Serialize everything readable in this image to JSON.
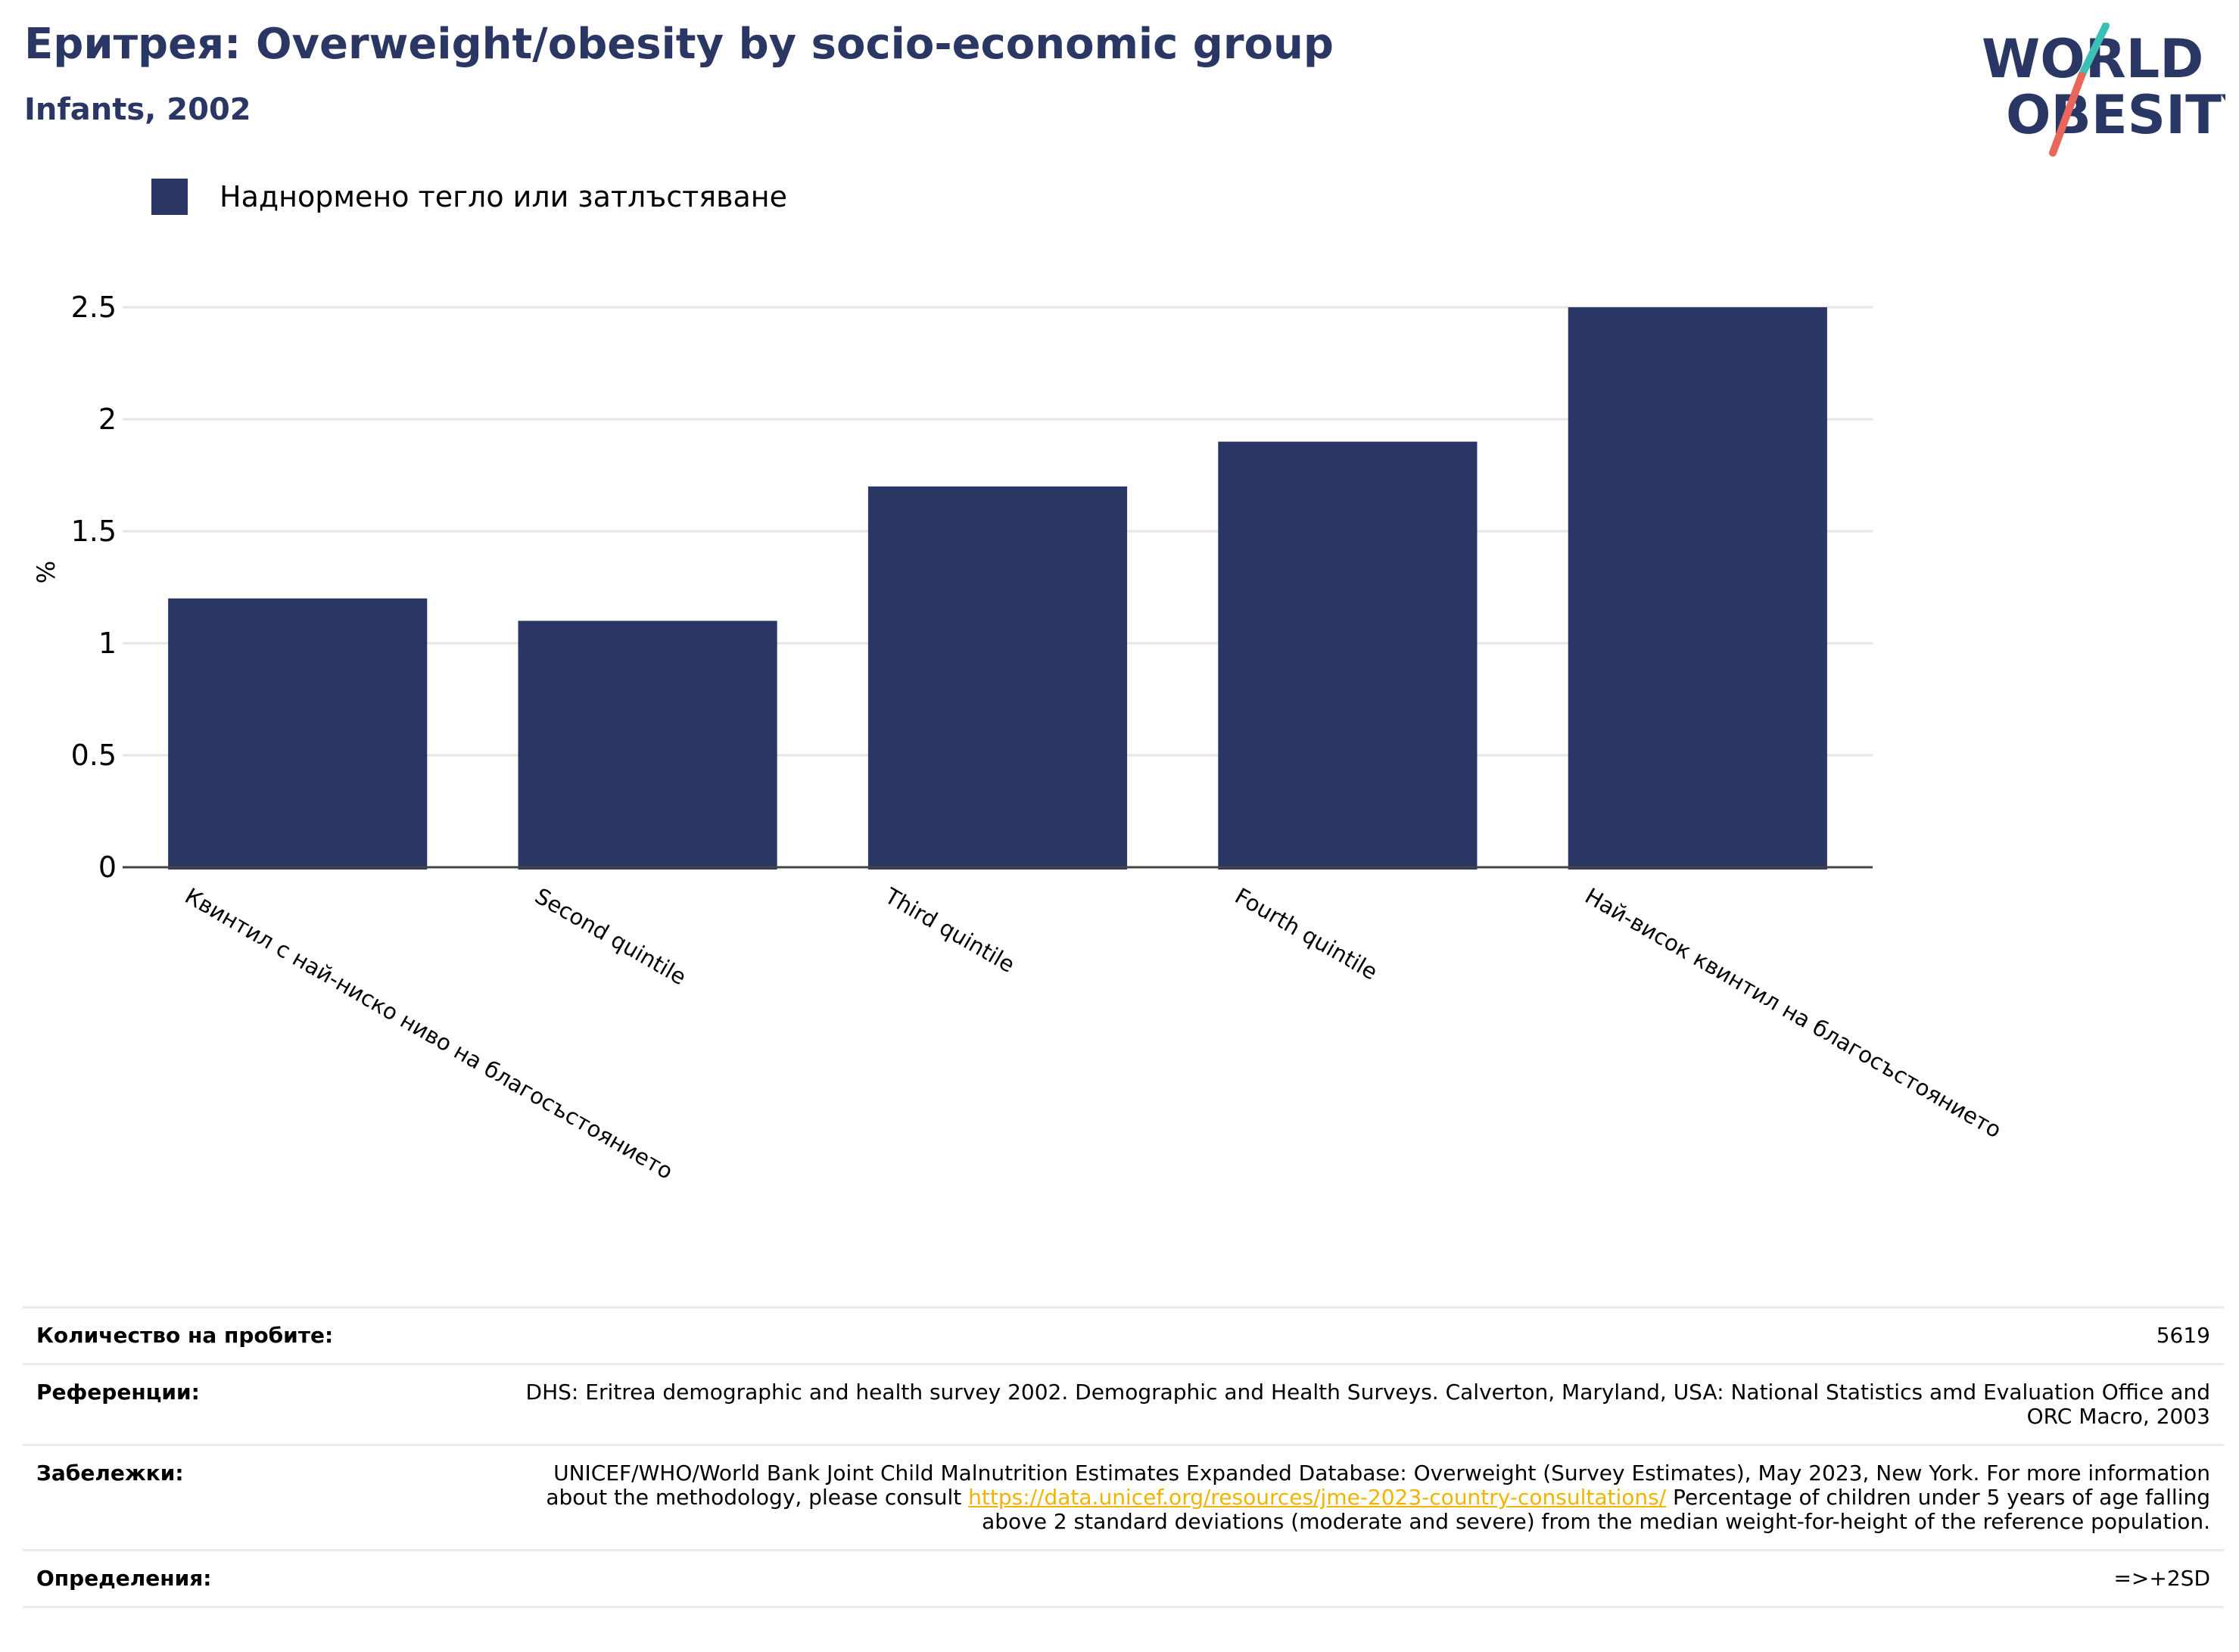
{
  "title": "Еритрея: Overweight/obesity by socio-economic group",
  "subtitle": "Infants, 2002",
  "logo": {
    "line1": "WORLD",
    "line2": "OBESITY"
  },
  "colors": {
    "bar": "#2a3664",
    "title": "#2a3664",
    "link": "#f2b300",
    "logo_teal": "#3bbfb7",
    "logo_red": "#e8675a"
  },
  "chart_data": {
    "type": "bar",
    "categories": [
      "Квинтил с най-ниско ниво на благосъстоянието",
      "Second quintile",
      "Third quintile",
      "Fourth quintile",
      "Най-висок квинтил на благосъстоянието"
    ],
    "series": [
      {
        "name": "Наднормено тегло или затлъстяване",
        "values": [
          1.2,
          1.1,
          1.7,
          1.9,
          2.5
        ]
      }
    ],
    "ylabel": "%",
    "ylim": [
      0,
      2.5
    ],
    "yticks": [
      "0",
      "0.5",
      "1",
      "1.5",
      "2",
      "2.5"
    ],
    "grid": true,
    "legend_position": "top-left"
  },
  "info": {
    "sample_label": "Количество на пробите:",
    "sample_value": "5619",
    "references_label": "Референции:",
    "references_value": "DHS: Eritrea demographic and health survey 2002. Demographic and Health Surveys. Calverton, Maryland, USA: National Statistics amd Evaluation Office and ORC Macro, 2003",
    "notes_label": "Забележки:",
    "notes_before": "UNICEF/WHO/World Bank Joint Child Malnutrition Estimates Expanded Database: Overweight (Survey Estimates), May 2023, New York. For more information about the methodology, please consult ",
    "notes_link": "https://data.unicef.org/resources/jme-2023-country-consultations/",
    "notes_after": " Percentage of children under 5 years of age falling above 2 standard deviations (moderate and severe) from the median weight-for-height of the reference population.",
    "definitions_label": "Определения:",
    "definitions_value": "=>+2SD"
  }
}
